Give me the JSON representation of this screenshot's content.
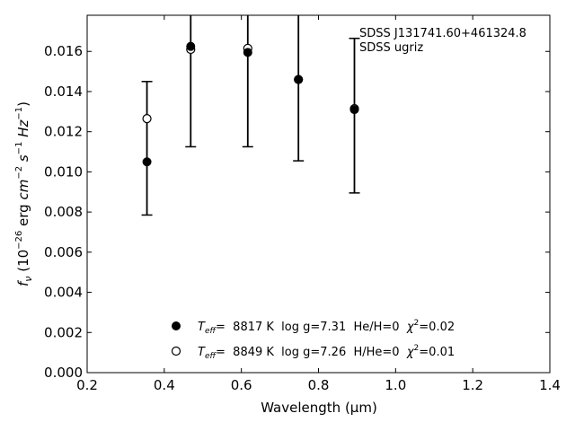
{
  "chart_data": {
    "type": "scatter",
    "xlabel": "Wavelength (μm)",
    "ylabel": "f_ν (10^-26 erg cm^-2 s^-1 Hz^-1)",
    "xlim": [
      0.2,
      1.4
    ],
    "ylim": [
      0.0,
      0.0178
    ],
    "xticks": [
      0.2,
      0.4,
      0.6,
      0.8,
      1.0,
      1.2,
      1.4
    ],
    "xtick_labels": [
      "0.2",
      "0.4",
      "0.6",
      "0.8",
      "1.0",
      "1.2",
      "1.4"
    ],
    "yticks": [
      0.0,
      0.002,
      0.004,
      0.006,
      0.008,
      0.01,
      0.012,
      0.014,
      0.016
    ],
    "ytick_labels": [
      "0.000",
      "0.002",
      "0.004",
      "0.006",
      "0.008",
      "0.010",
      "0.012",
      "0.014",
      "0.016"
    ],
    "grid": false,
    "legend_position": "lower-center",
    "annotation": [
      "SDSS J131741.60+461324.8",
      "SDSS ugriz"
    ],
    "observed": {
      "x": [
        0.3551,
        0.4686,
        0.6166,
        0.748,
        0.8932
      ],
      "y": [
        0.01265,
        0.0161,
        0.01615,
        0.0146,
        0.0131
      ],
      "yerr_low": [
        0.00785,
        0.01125,
        0.01125,
        0.01055,
        0.00895
      ],
      "yerr_high": [
        0.0145,
        0.018,
        0.018,
        0.018,
        0.01665
      ]
    },
    "series": [
      {
        "model": "filled",
        "legend": {
          "teff_symbol": "T",
          "teff_sub": "eff",
          "teff_eq": "=",
          "text": "  8817 K  log g=7.31  He/H=0  ",
          "chi": "χ",
          "chi_sup": "2",
          "chi_val": "=0.02"
        },
        "x": [
          0.3551,
          0.4686,
          0.6166,
          0.748,
          0.8932
        ],
        "y": [
          0.0105,
          0.01625,
          0.01595,
          0.0146,
          0.0131
        ],
        "color": "#000000"
      },
      {
        "model": "open",
        "legend": {
          "teff_symbol": "T",
          "teff_sub": "eff",
          "teff_eq": "=",
          "text": "  8849 K  log g=7.26  H/He=0  ",
          "chi": "χ",
          "chi_sup": "2",
          "chi_val": "=0.01"
        },
        "x": [
          0.3551,
          0.4686,
          0.6166,
          0.748,
          0.8932
        ],
        "y": [
          0.01265,
          0.0161,
          0.01615,
          0.0146,
          0.01315
        ],
        "color": "#000000"
      }
    ]
  }
}
